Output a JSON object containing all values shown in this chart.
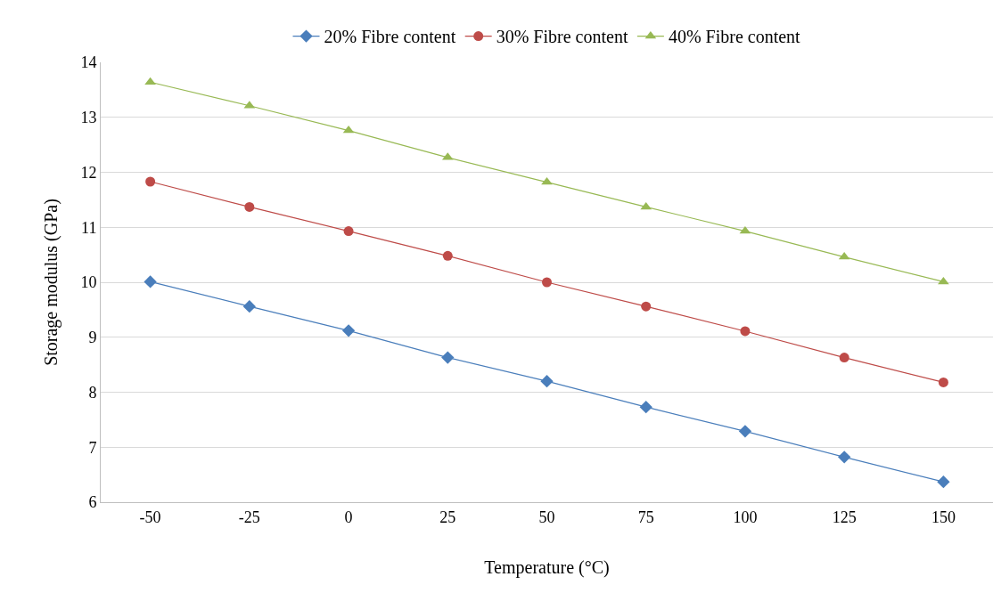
{
  "chart_data": {
    "type": "line",
    "xlabel": "Temperature (°C)",
    "ylabel": "Storage modulus (GPa)",
    "categories": [
      "-50",
      "-25",
      "0",
      "25",
      "50",
      "75",
      "100",
      "125",
      "150"
    ],
    "series": [
      {
        "name": "20% Fibre content",
        "color": "#4a7ebb",
        "marker": "diamond",
        "values": [
          10.01,
          9.56,
          9.12,
          8.63,
          8.2,
          7.73,
          7.29,
          6.82,
          6.37
        ]
      },
      {
        "name": "30% Fibre content",
        "color": "#be4b48",
        "marker": "circle",
        "values": [
          11.83,
          11.37,
          10.93,
          10.48,
          10.0,
          9.56,
          9.11,
          8.63,
          8.18
        ]
      },
      {
        "name": "40% Fibre content",
        "color": "#98b954",
        "marker": "triangle",
        "values": [
          13.64,
          13.21,
          12.76,
          12.27,
          11.82,
          11.37,
          10.93,
          10.46,
          10.01
        ]
      }
    ],
    "ylim": [
      6,
      14
    ],
    "yticks": [
      6,
      7,
      8,
      9,
      10,
      11,
      12,
      13,
      14
    ],
    "grid": "y",
    "legend": "top",
    "line_style": "solid"
  }
}
